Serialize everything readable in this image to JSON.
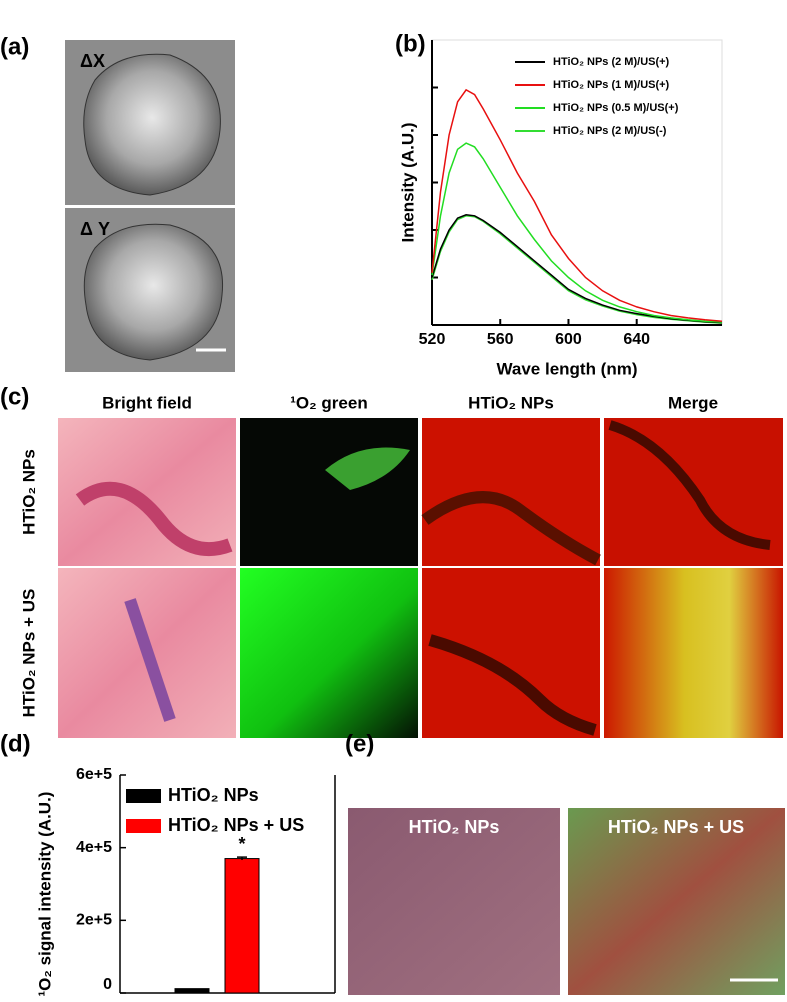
{
  "panel_labels": [
    "(a)",
    "(b)",
    "(c)",
    "(d)",
    "(e)"
  ],
  "panel_a": {
    "labels": [
      "ΔX",
      "Δ Y"
    ]
  },
  "panel_c": {
    "columns": [
      "Bright field",
      "¹O₂ green",
      "HTiO₂ NPs",
      "Merge"
    ],
    "rows": [
      "HTiO₂ NPs",
      "HTiO₂ NPs + US"
    ]
  },
  "panel_e": {
    "labels": [
      "HTiO₂ NPs",
      "HTiO₂ NPs + US"
    ]
  },
  "chart_data": [
    {
      "type": "line",
      "x_label": "Wave length (nm)",
      "y_label": "Intensity (A.U.)",
      "x": [
        520,
        525,
        530,
        535,
        540,
        545,
        550,
        560,
        570,
        580,
        590,
        600,
        610,
        620,
        630,
        640,
        650,
        660,
        670,
        680,
        690
      ],
      "xlim": [
        520,
        690
      ],
      "xticks": [
        520,
        560,
        600,
        640
      ],
      "ylim": [
        0,
        6
      ],
      "yticks": [
        1,
        2,
        3,
        4,
        5
      ],
      "legend": "upper right",
      "series": [
        {
          "name": "HTiO₂ NPs (2 M)/US(+)",
          "color": "#000000",
          "values": [
            1.0,
            1.6,
            2.0,
            2.25,
            2.32,
            2.3,
            2.2,
            1.95,
            1.65,
            1.35,
            1.05,
            0.75,
            0.56,
            0.42,
            0.31,
            0.24,
            0.18,
            0.13,
            0.1,
            0.07,
            0.05
          ]
        },
        {
          "name": "HTiO₂ NPs (1 M)/US(+)",
          "color": "#e81010",
          "values": [
            1.1,
            2.8,
            4.0,
            4.7,
            4.95,
            4.85,
            4.55,
            3.9,
            3.2,
            2.6,
            1.9,
            1.4,
            1.0,
            0.72,
            0.52,
            0.38,
            0.28,
            0.2,
            0.15,
            0.11,
            0.08
          ]
        },
        {
          "name": "HTiO₂ NPs (0.5 M)/US(+)",
          "color": "#22dd22",
          "values": [
            1.05,
            2.3,
            3.2,
            3.7,
            3.83,
            3.75,
            3.5,
            2.9,
            2.3,
            1.8,
            1.35,
            1.0,
            0.72,
            0.52,
            0.38,
            0.28,
            0.2,
            0.15,
            0.11,
            0.08,
            0.06
          ]
        },
        {
          "name": "HTiO₂ NPs (2 M)/US(-)",
          "color": "#33dd33",
          "values": [
            0.95,
            1.55,
            1.96,
            2.22,
            2.3,
            2.28,
            2.18,
            1.92,
            1.62,
            1.32,
            1.02,
            0.72,
            0.53,
            0.4,
            0.29,
            0.22,
            0.16,
            0.12,
            0.09,
            0.06,
            0.04
          ]
        }
      ]
    },
    {
      "type": "bar",
      "y_label": "¹O₂ signal intensity (A.U.)",
      "annotation": "*",
      "ylim": [
        0,
        600000
      ],
      "yticks": [
        0,
        {
          "value": 200000,
          "label": "2e+5"
        },
        {
          "value": 400000,
          "label": "4e+5"
        },
        {
          "value": 600000,
          "label": "6e+5"
        }
      ],
      "legend": "upper left",
      "series": [
        {
          "name": "HTiO₂ NPs",
          "color": "#000000",
          "values": [
            12000
          ]
        },
        {
          "name": "HTiO₂ NPs + US",
          "color": "#ff0000",
          "values": [
            370000
          ],
          "errors": [
            4000
          ]
        }
      ]
    }
  ]
}
